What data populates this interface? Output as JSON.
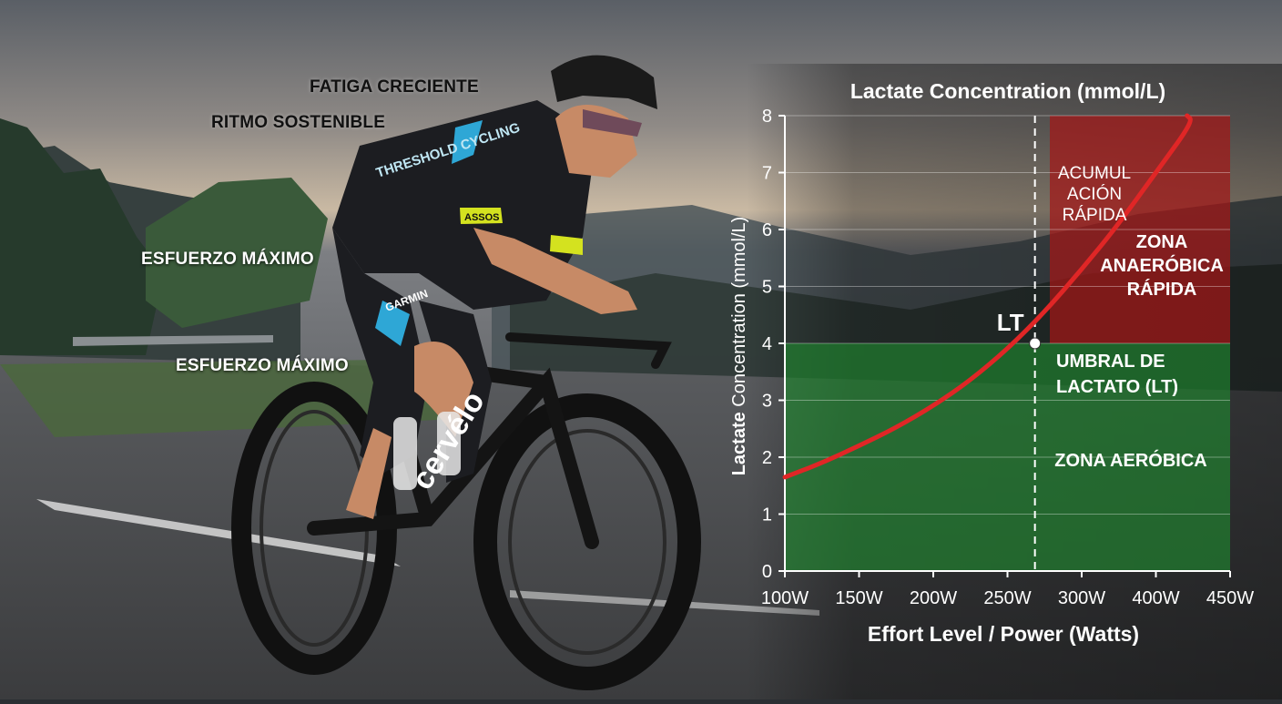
{
  "photo": {
    "description_icon": "cyclist-photo",
    "jersey_text": "THRESHOLD CYCLING",
    "sponsor_text": "GARMIN",
    "sleeve_text": "ASSOS",
    "bike_brand": "cervélo",
    "labels": [
      "FATIGA CRECIENTE",
      "RITMO SOSTENIBLE",
      "ESFUERZO MÁXIMO",
      "ESFUERZO MÁXIMO"
    ]
  },
  "chart_data": {
    "type": "line",
    "title": "Lactate Concentration (mmol/L)",
    "ylabel_bold": "Lactate",
    "ylabel_rest": " Concentration (mmol/L)",
    "xlabel": "Effort Level / Power (Watts)",
    "x_tick_labels": [
      "100W",
      "150W",
      "200W",
      "250W",
      "300W",
      "400W",
      "450W"
    ],
    "y_ticks": [
      0,
      1,
      2,
      3,
      4,
      5,
      6,
      7,
      8
    ],
    "ylim": [
      0,
      8
    ],
    "series": [
      {
        "x_index": [
          0,
          0.5,
          1,
          1.5,
          2,
          2.5,
          3,
          3.5,
          4,
          4.5,
          5,
          5.5,
          5.42
        ],
        "values": [
          1.65,
          1.9,
          2.2,
          2.52,
          2.9,
          3.35,
          3.9,
          4.55,
          5.3,
          6.1,
          7.0,
          7.9,
          8.0
        ],
        "color": "#e02626"
      }
    ],
    "lt_marker": {
      "label": "LT",
      "x_index": 3.37,
      "value": 4.0
    },
    "zones": [
      {
        "name": "aerobic",
        "from": 0,
        "to": 4,
        "color": "#1f8a2e"
      },
      {
        "name": "anaerobic",
        "from": 4,
        "to": 8,
        "color": "#a31616"
      }
    ],
    "annotations": {
      "acumulacion": [
        "ACUMUL",
        "ACIÓN",
        "RÁPIDA"
      ],
      "zona_anaerobica": [
        "ZONA",
        "ANAERÓBICA",
        "RÁPIDA"
      ],
      "umbral": [
        "UMBRAL DE",
        "LACTATO (LT)"
      ],
      "zona_aerobica": "ZONA AERÓBICA"
    },
    "grid": true
  }
}
